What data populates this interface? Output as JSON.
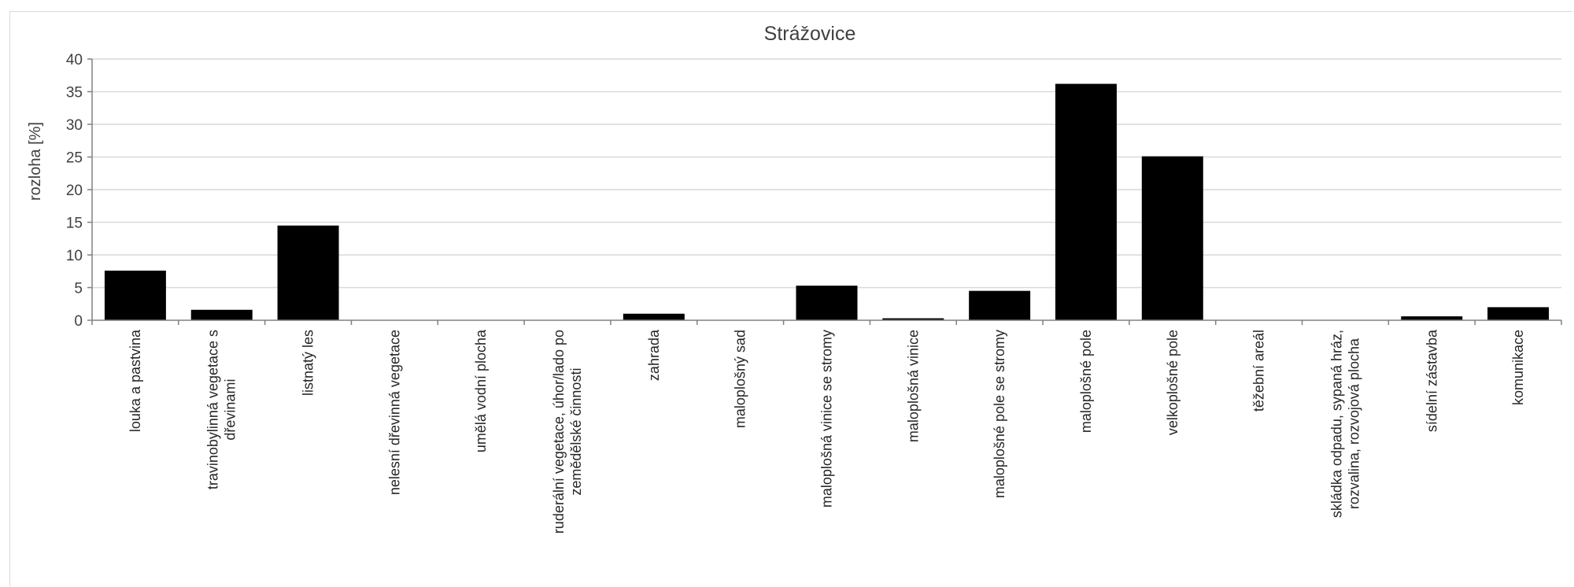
{
  "chart_data": {
    "type": "bar",
    "title": "Strážovice",
    "xlabel": "",
    "ylabel": "rozloha [%]",
    "ylim": [
      0,
      40
    ],
    "yticks": [
      0,
      5,
      10,
      15,
      20,
      25,
      30,
      35,
      40
    ],
    "grid": true,
    "legend": "none",
    "bar_color": "#000000",
    "categories": [
      [
        "louka a pastvina"
      ],
      [
        "travinobylinná vegetace s",
        "dřevinami"
      ],
      [
        "listnatý les"
      ],
      [
        "nelesní dřevinná vegetace"
      ],
      [
        "umělá vodní plocha"
      ],
      [
        "ruderální vegetace, úhor/lado po",
        "zemědělské činnosti"
      ],
      [
        "zahrada"
      ],
      [
        "maloplošný sad"
      ],
      [
        "maloplošná vinice se stromy"
      ],
      [
        "maloplošná vinice"
      ],
      [
        "maloplošné pole se stromy"
      ],
      [
        "maloplošné pole"
      ],
      [
        "velkoplošné pole"
      ],
      [
        "těžební areál"
      ],
      [
        "skládka odpadu, sypaná hráz,",
        "rozvalina, rozvojová plocha"
      ],
      [
        "sídelní zástavba"
      ],
      [
        "komunikace"
      ]
    ],
    "values": [
      7.6,
      1.6,
      14.5,
      0,
      0,
      0,
      1.0,
      0,
      5.3,
      0.3,
      4.5,
      36.2,
      25.1,
      0,
      0,
      0.6,
      2.0
    ]
  }
}
